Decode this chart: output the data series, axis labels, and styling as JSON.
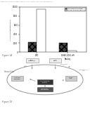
{
  "header": "Patent Application Publication   Feb. 22, 2018   Sheet 14 of 15   US 2018/0049994 A1",
  "bar_groups": [
    "DPD",
    "DHNF-1000 nM\nAnalog"
  ],
  "series1_label": "with quorum sensing",
  "series2_label": "without quorum sensing",
  "series1_values": [
    2200,
    2000
  ],
  "series2_values": [
    9500,
    350
  ],
  "series1_color": "#444444",
  "series2_color": "#ffffff",
  "ylabel": "AI-2 bioluminescence (RLU)",
  "ylim": [
    0,
    10000
  ],
  "yticks": [
    0,
    2000,
    4000,
    6000,
    8000,
    10000
  ],
  "fig_label_a": "Figure 14",
  "fig_label_b": "Figure 15",
  "bg_color": "#ffffff"
}
